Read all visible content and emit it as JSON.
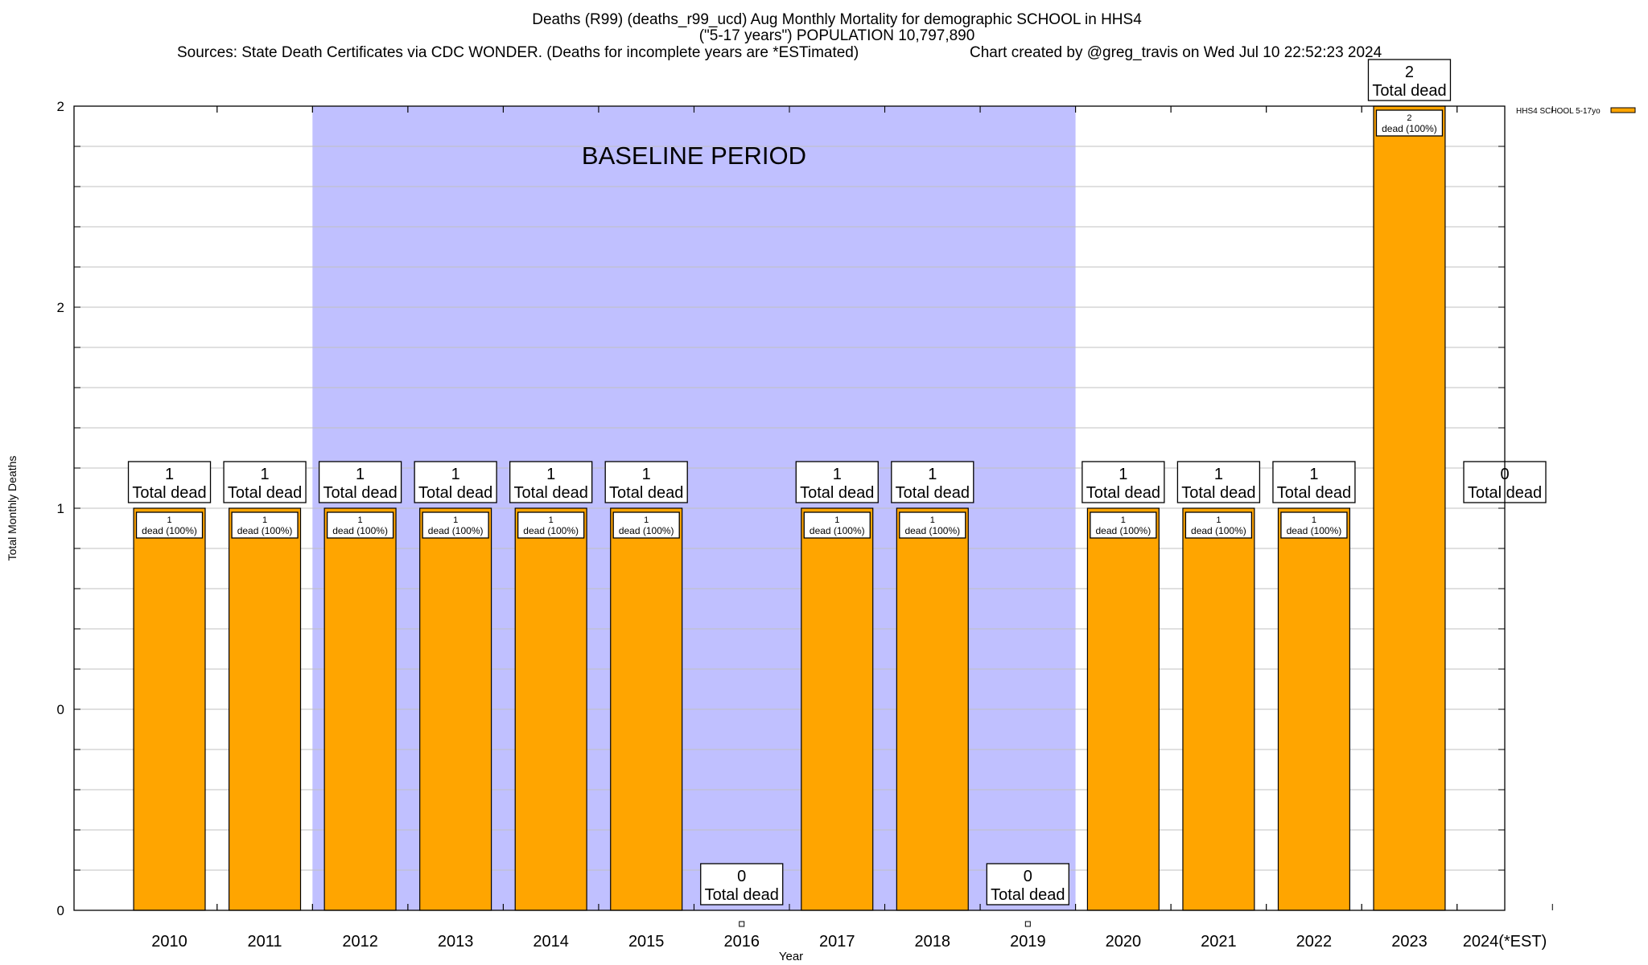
{
  "chart_data": {
    "type": "bar",
    "title_lines": [
      "Deaths (R99) (deaths_r99_ucd) Aug Monthly Mortality for demographic SCHOOL in HHS4",
      "(\"5-17 years\") POPULATION 10,797,890"
    ],
    "sources": "Sources: State Death Certificates via CDC WONDER. (Deaths for incomplete years are *ESTimated)",
    "credit": "Chart created by @greg_travis on Wed Jul 10 22:52:23 2024",
    "xlabel": "Year",
    "ylabel": "Total Monthly Deaths",
    "categories": [
      "2010",
      "2011",
      "2012",
      "2013",
      "2014",
      "2015",
      "2016",
      "2017",
      "2018",
      "2019",
      "2020",
      "2021",
      "2022",
      "2023",
      "2024(*EST)"
    ],
    "series": [
      {
        "name": "HHS4 SCHOOL 5-17yo",
        "color": "#ffa500",
        "values": [
          1,
          1,
          1,
          1,
          1,
          1,
          0,
          1,
          1,
          0,
          1,
          1,
          1,
          2,
          0
        ]
      }
    ],
    "total_label": "Total dead",
    "bar_label_suffix": "dead (100%)",
    "ylim": [
      0,
      2
    ],
    "yticks": [
      0,
      0.5,
      1,
      1.5,
      2
    ],
    "ytick_labels": [
      "0",
      "0",
      "1",
      "2",
      "2"
    ],
    "grid": true,
    "baseline": {
      "label": "BASELINE PERIOD",
      "from_category": "2012",
      "to_category": "2019",
      "color": "#c0c0ff"
    },
    "legend_position": "top-right"
  }
}
